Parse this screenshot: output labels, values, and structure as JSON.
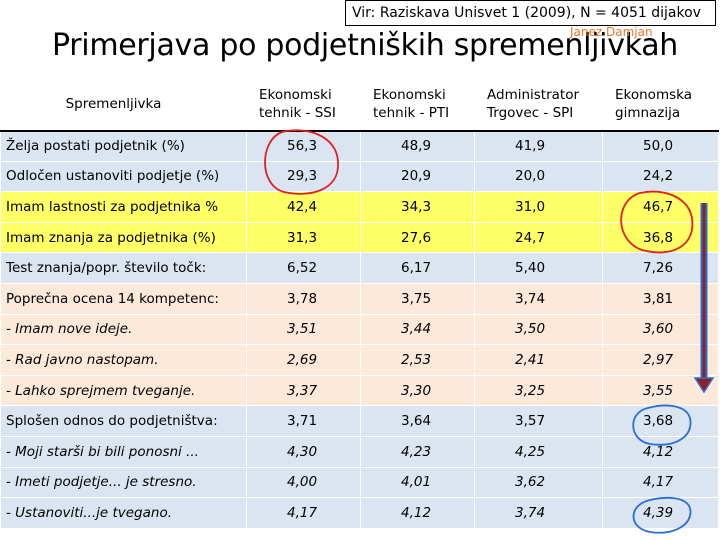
{
  "source": "Vir: Raziskava Unisvet 1 (2009), N = 4051 dijakov",
  "author": "Janez Damjan",
  "title": "Primerjava po podjetniških spremenljivkah",
  "table": {
    "header": {
      "variable": "Spremenljivka",
      "columns": [
        [
          "Ekonomski",
          "tehnik - SSI"
        ],
        [
          "Ekonomski",
          "tehnik - PTI"
        ],
        [
          "Administrator",
          "Trgovec - SPI"
        ],
        [
          "Ekonomska",
          "gimnazija"
        ]
      ]
    },
    "rows": [
      {
        "label": "Želja postati podjetnik (%)",
        "values": [
          "56,3",
          "48,9",
          "41,9",
          "50,0"
        ],
        "style": "blue",
        "italic": false
      },
      {
        "label": "Odločen ustanoviti podjetje (%)",
        "values": [
          "29,3",
          "20,9",
          "20,0",
          "24,2"
        ],
        "style": "blue",
        "italic": false
      },
      {
        "label": "Imam lastnosti za podjetnika %",
        "values": [
          "42,4",
          "34,3",
          "31,0",
          "46,7"
        ],
        "style": "yellow",
        "italic": false
      },
      {
        "label": "Imam znanja za podjetnika (%)",
        "values": [
          "31,3",
          "27,6",
          "24,7",
          "36,8"
        ],
        "style": "yellow",
        "italic": false
      },
      {
        "label": "Test znanja/popr. število točk:",
        "values": [
          "6,52",
          "6,17",
          "5,40",
          "7,26"
        ],
        "style": "blue",
        "italic": false
      },
      {
        "label": "Poprečna ocena 14 kompetenc:",
        "values": [
          "3,78",
          "3,75",
          "3,74",
          "3,81"
        ],
        "style": "peach",
        "italic": false
      },
      {
        "label": "- Imam nove ideje.",
        "values": [
          "3,51",
          "3,44",
          "3,50",
          "3,60"
        ],
        "style": "peach",
        "italic": true
      },
      {
        "label": "- Rad javno nastopam.",
        "values": [
          "2,69",
          "2,53",
          "2,41",
          "2,97"
        ],
        "style": "peach",
        "italic": true
      },
      {
        "label": "- Lahko sprejmem tveganje.",
        "values": [
          "3,37",
          "3,30",
          "3,25",
          "3,55"
        ],
        "style": "peach",
        "italic": true
      },
      {
        "label": "Splošen odnos do podjetništva:",
        "values": [
          "3,71",
          "3,64",
          "3,57",
          "3,68"
        ],
        "style": "blue",
        "italic": false
      },
      {
        "label": "- Moji starši bi bili ponosni ...",
        "values": [
          "4,30",
          "4,23",
          "4,25",
          "4,12"
        ],
        "style": "blue",
        "italic": true
      },
      {
        "label": "- Imeti podjetje... je stresno.",
        "values": [
          "4,00",
          "4,01",
          "3,62",
          "4,17"
        ],
        "style": "blue",
        "italic": true
      },
      {
        "label": "- Ustanoviti...je tvegano.",
        "values": [
          "4,17",
          "4,12",
          "3,74",
          "4,39"
        ],
        "style": "blue",
        "italic": true
      }
    ]
  },
  "colors": {
    "blue_rows": "#dbe5f1",
    "yellow_rows": "#ffff66",
    "peach_rows": "#fde9d9",
    "annotation_red": "#e02020",
    "annotation_blue": "#2a6fd6",
    "arrow": "#8b2323"
  }
}
